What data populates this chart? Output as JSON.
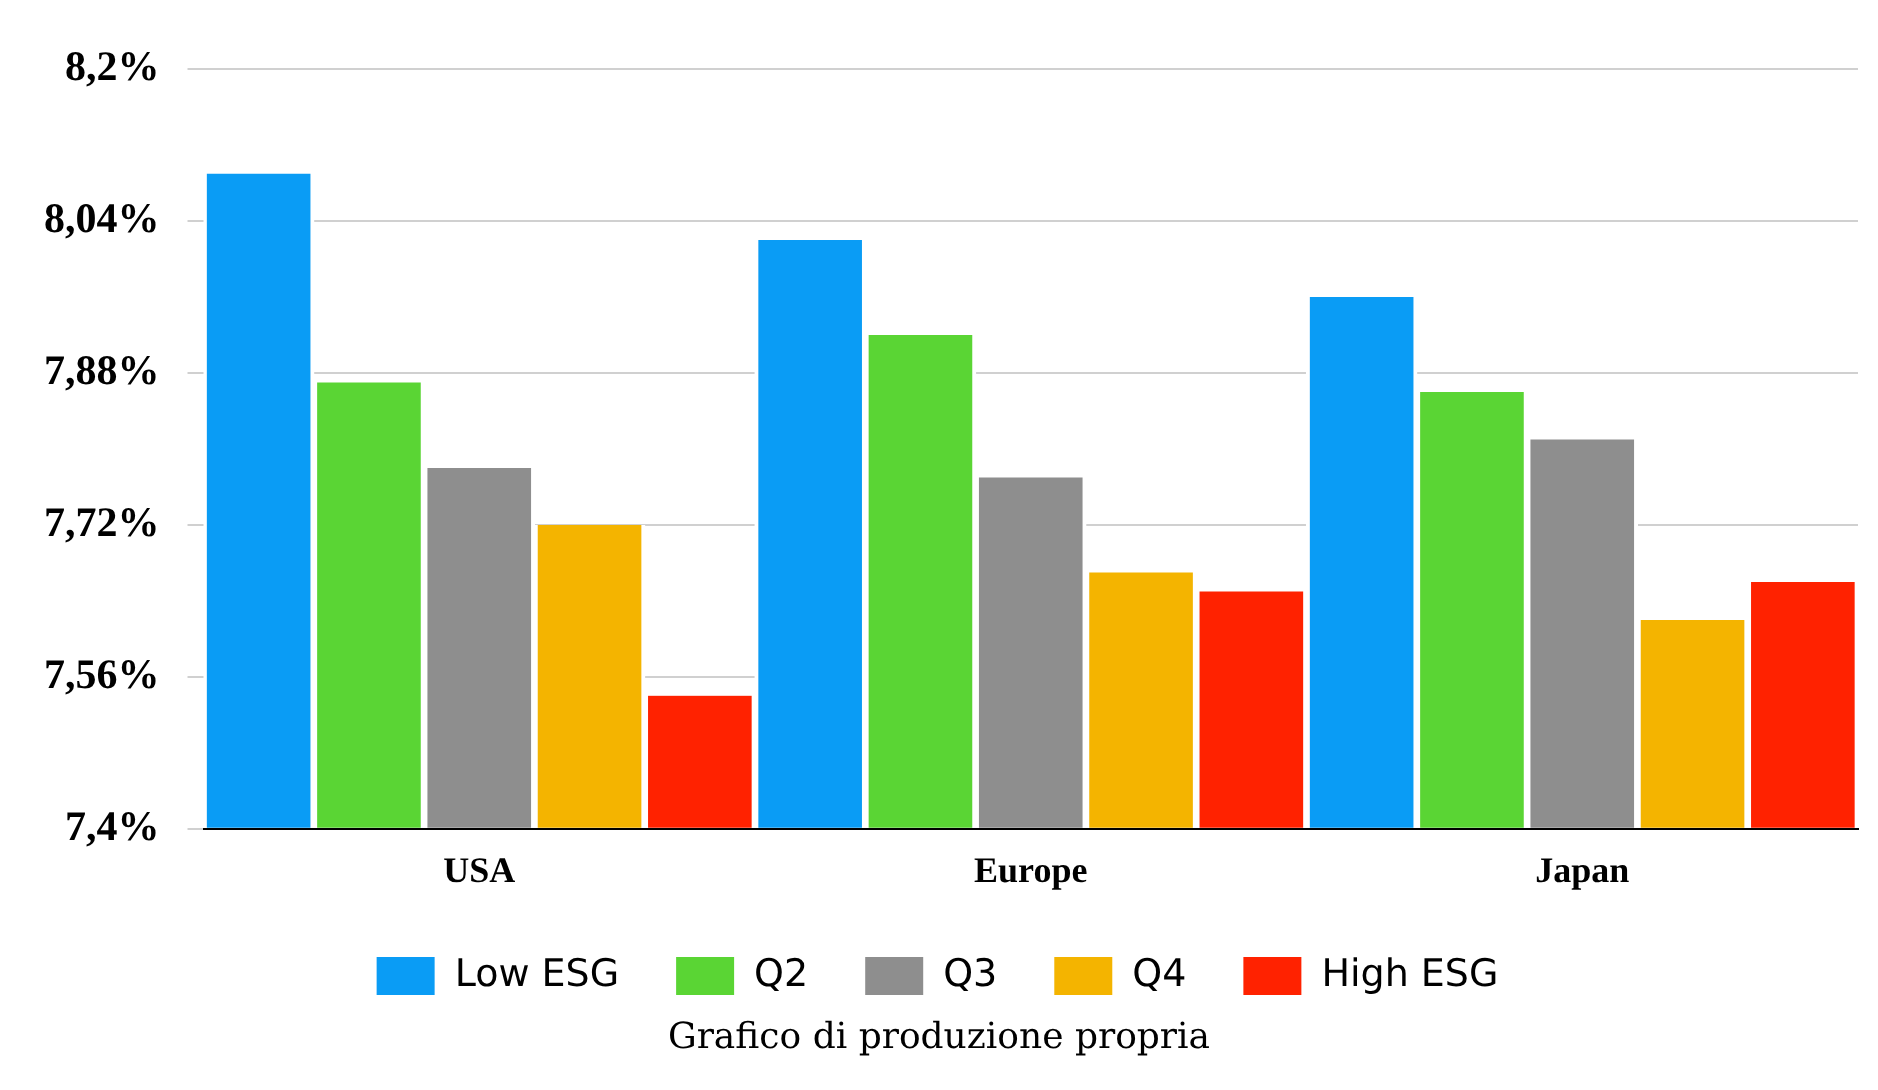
{
  "chart_data": {
    "type": "bar",
    "categories": [
      "USA",
      "Europe",
      "Japan"
    ],
    "series": [
      {
        "name": "Low ESG",
        "color": "#0a9cf5",
        "values": [
          8.09,
          8.02,
          7.96
        ]
      },
      {
        "name": "Q2",
        "color": "#5ad534",
        "values": [
          7.87,
          7.92,
          7.86
        ]
      },
      {
        "name": "Q3",
        "color": "#8e8e8e",
        "values": [
          7.78,
          7.77,
          7.81
        ]
      },
      {
        "name": "Q4",
        "color": "#f4b400",
        "values": [
          7.72,
          7.67,
          7.62
        ]
      },
      {
        "name": "High ESG",
        "color": "#ff2200",
        "values": [
          7.54,
          7.65,
          7.66
        ]
      }
    ],
    "ylim": [
      7.4,
      8.2
    ],
    "yticks": [
      {
        "value": 7.4,
        "label": "7,4%"
      },
      {
        "value": 7.56,
        "label": "7,56%"
      },
      {
        "value": 7.72,
        "label": "7,72%"
      },
      {
        "value": 7.88,
        "label": "7,88%"
      },
      {
        "value": 8.04,
        "label": "8,04%"
      },
      {
        "value": 8.2,
        "label": "8,2%"
      }
    ],
    "grid": "y",
    "legend": "bottom",
    "annotations": [
      "Grafico di produzione propria"
    ]
  }
}
